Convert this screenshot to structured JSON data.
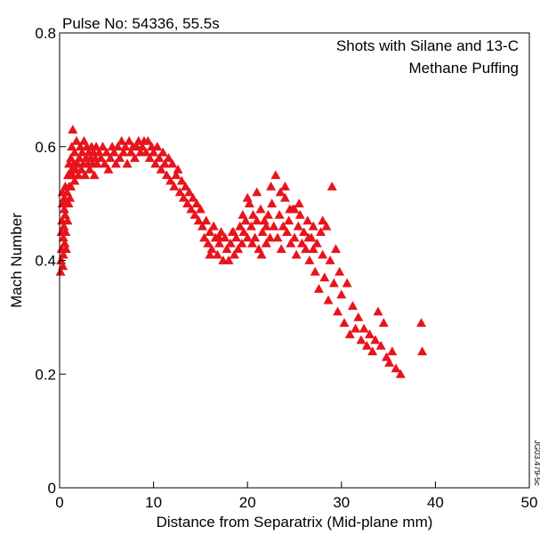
{
  "chart_data": {
    "type": "scatter",
    "title": "Pulse No: 54336, 55.5s",
    "annotation": [
      "Shots with Silane and 13-C",
      "Methane Puffing"
    ],
    "xlabel": "Distance from Separatrix (Mid-plane mm)",
    "ylabel": "Mach Number",
    "xlim": [
      0,
      50
    ],
    "ylim": [
      0,
      0.8
    ],
    "xticks": [
      "0",
      "10",
      "20",
      "30",
      "40",
      "50"
    ],
    "yticks": [
      "0",
      "0.2",
      "0.4",
      "0.6",
      "0.8"
    ],
    "marker": "triangle",
    "marker_color": "#e8141c",
    "grid": false,
    "figure_id": "JG03.479-5c",
    "points": [
      [
        0.1,
        0.38
      ],
      [
        0.15,
        0.4
      ],
      [
        0.2,
        0.42
      ],
      [
        0.2,
        0.45
      ],
      [
        0.25,
        0.47
      ],
      [
        0.3,
        0.5
      ],
      [
        0.3,
        0.52
      ],
      [
        0.35,
        0.39
      ],
      [
        0.4,
        0.41
      ],
      [
        0.4,
        0.44
      ],
      [
        0.45,
        0.46
      ],
      [
        0.5,
        0.49
      ],
      [
        0.5,
        0.51
      ],
      [
        0.55,
        0.43
      ],
      [
        0.6,
        0.48
      ],
      [
        0.6,
        0.53
      ],
      [
        0.65,
        0.45
      ],
      [
        0.7,
        0.5
      ],
      [
        0.7,
        0.42
      ],
      [
        0.8,
        0.52
      ],
      [
        0.85,
        0.47
      ],
      [
        0.9,
        0.55
      ],
      [
        0.95,
        0.5
      ],
      [
        1.0,
        0.53
      ],
      [
        1.0,
        0.57
      ],
      [
        1.1,
        0.51
      ],
      [
        1.1,
        0.55
      ],
      [
        1.2,
        0.58
      ],
      [
        1.2,
        0.53
      ],
      [
        1.3,
        0.56
      ],
      [
        1.3,
        0.6
      ],
      [
        1.4,
        0.55
      ],
      [
        1.4,
        0.63
      ],
      [
        1.5,
        0.57
      ],
      [
        1.6,
        0.54
      ],
      [
        1.6,
        0.59
      ],
      [
        1.7,
        0.56
      ],
      [
        1.8,
        0.61
      ],
      [
        1.9,
        0.57
      ],
      [
        2.0,
        0.55
      ],
      [
        2.1,
        0.58
      ],
      [
        2.2,
        0.6
      ],
      [
        2.3,
        0.56
      ],
      [
        2.4,
        0.59
      ],
      [
        2.5,
        0.57
      ],
      [
        2.6,
        0.61
      ],
      [
        2.7,
        0.55
      ],
      [
        2.8,
        0.58
      ],
      [
        2.9,
        0.6
      ],
      [
        3.0,
        0.57
      ],
      [
        3.1,
        0.59
      ],
      [
        3.2,
        0.56
      ],
      [
        3.3,
        0.58
      ],
      [
        3.4,
        0.6
      ],
      [
        3.5,
        0.57
      ],
      [
        3.6,
        0.59
      ],
      [
        3.7,
        0.55
      ],
      [
        3.8,
        0.58
      ],
      [
        3.9,
        0.6
      ],
      [
        4.0,
        0.57
      ],
      [
        4.2,
        0.59
      ],
      [
        4.4,
        0.58
      ],
      [
        4.6,
        0.6
      ],
      [
        4.8,
        0.57
      ],
      [
        5.0,
        0.59
      ],
      [
        5.2,
        0.56
      ],
      [
        5.4,
        0.58
      ],
      [
        5.6,
        0.6
      ],
      [
        5.8,
        0.59
      ],
      [
        6.0,
        0.57
      ],
      [
        6.2,
        0.6
      ],
      [
        6.4,
        0.58
      ],
      [
        6.6,
        0.61
      ],
      [
        6.8,
        0.59
      ],
      [
        7.0,
        0.6
      ],
      [
        7.2,
        0.57
      ],
      [
        7.4,
        0.61
      ],
      [
        7.6,
        0.59
      ],
      [
        7.8,
        0.6
      ],
      [
        8.0,
        0.58
      ],
      [
        8.2,
        0.6
      ],
      [
        8.4,
        0.61
      ],
      [
        8.6,
        0.59
      ],
      [
        8.8,
        0.6
      ],
      [
        9.0,
        0.61
      ],
      [
        9.2,
        0.59
      ],
      [
        9.4,
        0.61
      ],
      [
        9.6,
        0.58
      ],
      [
        9.8,
        0.6
      ],
      [
        10.0,
        0.59
      ],
      [
        10.2,
        0.57
      ],
      [
        10.4,
        0.6
      ],
      [
        10.6,
        0.58
      ],
      [
        10.8,
        0.56
      ],
      [
        11.0,
        0.59
      ],
      [
        11.2,
        0.57
      ],
      [
        11.4,
        0.55
      ],
      [
        11.6,
        0.58
      ],
      [
        11.8,
        0.54
      ],
      [
        12.0,
        0.57
      ],
      [
        12.2,
        0.53
      ],
      [
        12.4,
        0.55
      ],
      [
        12.6,
        0.56
      ],
      [
        12.8,
        0.52
      ],
      [
        13.0,
        0.54
      ],
      [
        13.2,
        0.51
      ],
      [
        13.4,
        0.53
      ],
      [
        13.6,
        0.5
      ],
      [
        13.8,
        0.52
      ],
      [
        14.0,
        0.49
      ],
      [
        14.2,
        0.51
      ],
      [
        14.4,
        0.48
      ],
      [
        14.6,
        0.5
      ],
      [
        14.8,
        0.47
      ],
      [
        15.0,
        0.49
      ],
      [
        15.2,
        0.46
      ],
      [
        15.4,
        0.44
      ],
      [
        15.6,
        0.47
      ],
      [
        15.8,
        0.43
      ],
      [
        16.0,
        0.45
      ],
      [
        16.2,
        0.42
      ],
      [
        16.4,
        0.46
      ],
      [
        16.6,
        0.44
      ],
      [
        16.8,
        0.41
      ],
      [
        17.0,
        0.43
      ],
      [
        17.2,
        0.45
      ],
      [
        17.4,
        0.4
      ],
      [
        17.6,
        0.44
      ],
      [
        17.8,
        0.42
      ],
      [
        18.0,
        0.4
      ],
      [
        18.2,
        0.43
      ],
      [
        18.4,
        0.45
      ],
      [
        18.6,
        0.41
      ],
      [
        18.8,
        0.44
      ],
      [
        19.0,
        0.42
      ],
      [
        19.2,
        0.46
      ],
      [
        19.4,
        0.43
      ],
      [
        19.6,
        0.45
      ],
      [
        19.8,
        0.47
      ],
      [
        20.0,
        0.44
      ],
      [
        20.2,
        0.5
      ],
      [
        20.4,
        0.46
      ],
      [
        20.6,
        0.48
      ],
      [
        20.8,
        0.44
      ],
      [
        21.0,
        0.47
      ],
      [
        21.2,
        0.42
      ],
      [
        21.4,
        0.49
      ],
      [
        21.6,
        0.45
      ],
      [
        21.8,
        0.47
      ],
      [
        22.0,
        0.43
      ],
      [
        22.2,
        0.48
      ],
      [
        22.4,
        0.44
      ],
      [
        22.6,
        0.5
      ],
      [
        22.8,
        0.46
      ],
      [
        23.0,
        0.55
      ],
      [
        23.2,
        0.44
      ],
      [
        23.4,
        0.48
      ],
      [
        23.6,
        0.42
      ],
      [
        23.8,
        0.46
      ],
      [
        24.0,
        0.51
      ],
      [
        24.2,
        0.45
      ],
      [
        24.4,
        0.47
      ],
      [
        24.6,
        0.43
      ],
      [
        24.8,
        0.49
      ],
      [
        25.0,
        0.44
      ],
      [
        25.2,
        0.41
      ],
      [
        25.4,
        0.46
      ],
      [
        25.6,
        0.48
      ],
      [
        25.8,
        0.43
      ],
      [
        26.0,
        0.45
      ],
      [
        26.2,
        0.42
      ],
      [
        26.4,
        0.47
      ],
      [
        26.6,
        0.4
      ],
      [
        26.8,
        0.44
      ],
      [
        27.0,
        0.46
      ],
      [
        27.2,
        0.38
      ],
      [
        27.4,
        0.43
      ],
      [
        27.6,
        0.35
      ],
      [
        27.8,
        0.45
      ],
      [
        28.0,
        0.41
      ],
      [
        28.2,
        0.37
      ],
      [
        28.4,
        0.46
      ],
      [
        28.6,
        0.33
      ],
      [
        28.8,
        0.4
      ],
      [
        29.0,
        0.53
      ],
      [
        29.2,
        0.36
      ],
      [
        29.4,
        0.42
      ],
      [
        29.6,
        0.31
      ],
      [
        29.8,
        0.38
      ],
      [
        30.0,
        0.34
      ],
      [
        30.3,
        0.29
      ],
      [
        30.6,
        0.36
      ],
      [
        30.9,
        0.27
      ],
      [
        31.2,
        0.32
      ],
      [
        31.5,
        0.28
      ],
      [
        31.8,
        0.3
      ],
      [
        32.1,
        0.26
      ],
      [
        32.4,
        0.28
      ],
      [
        32.7,
        0.25
      ],
      [
        33.0,
        0.27
      ],
      [
        33.3,
        0.24
      ],
      [
        33.6,
        0.26
      ],
      [
        33.9,
        0.31
      ],
      [
        34.2,
        0.25
      ],
      [
        34.5,
        0.29
      ],
      [
        34.8,
        0.23
      ],
      [
        35.1,
        0.22
      ],
      [
        35.4,
        0.24
      ],
      [
        35.8,
        0.21
      ],
      [
        36.3,
        0.2
      ],
      [
        38.5,
        0.29
      ],
      [
        38.6,
        0.24
      ],
      [
        17.0,
        0.44
      ],
      [
        16.0,
        0.41
      ],
      [
        18.5,
        0.45
      ],
      [
        20.5,
        0.43
      ],
      [
        22.0,
        0.46
      ],
      [
        24.5,
        0.49
      ],
      [
        26.5,
        0.44
      ],
      [
        21.5,
        0.41
      ],
      [
        19.5,
        0.48
      ],
      [
        27.0,
        0.42
      ],
      [
        28.0,
        0.47
      ],
      [
        25.5,
        0.5
      ],
      [
        23.5,
        0.52
      ],
      [
        20.0,
        0.51
      ],
      [
        21.0,
        0.52
      ],
      [
        22.5,
        0.53
      ],
      [
        24.0,
        0.53
      ],
      [
        25.0,
        0.49
      ]
    ]
  }
}
